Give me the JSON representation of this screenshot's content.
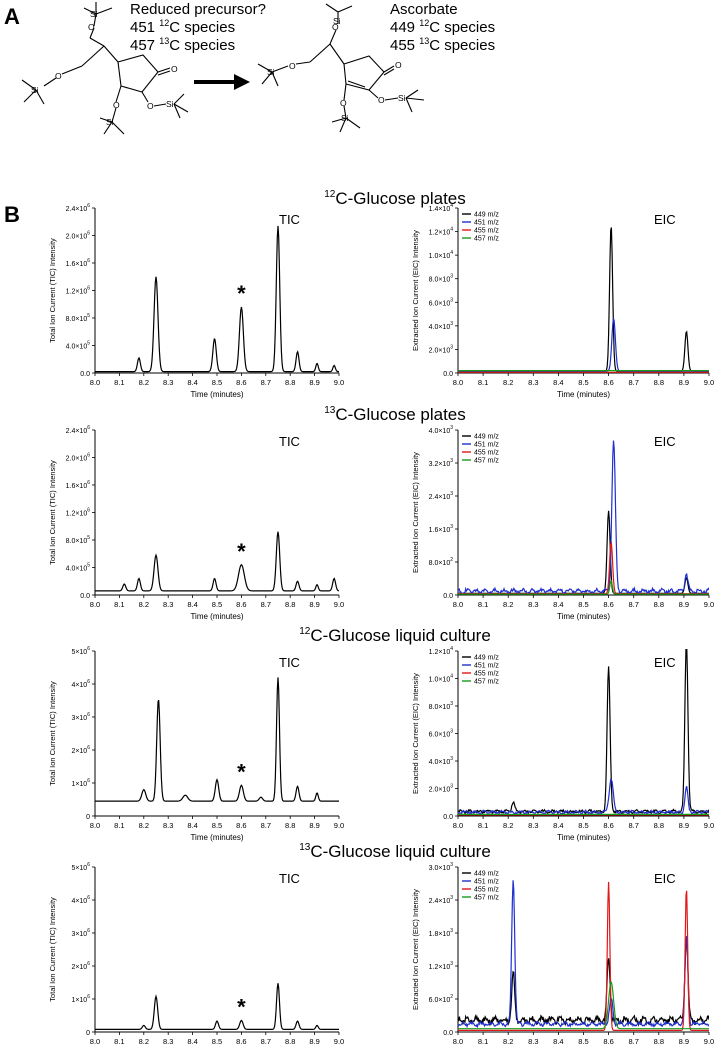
{
  "panel_labels": {
    "a": "A",
    "b": "B"
  },
  "scheme": {
    "left": {
      "line1": "Reduced precursor?",
      "line2_num": "451",
      "line2_iso": "12",
      "line2_tail": "C species",
      "line3_num": "457",
      "line3_iso": "13",
      "line3_tail": "C species"
    },
    "right": {
      "line1": "Ascorbate",
      "line2_num": "449",
      "line2_iso": "12",
      "line2_tail": "C species",
      "line3_num": "455",
      "line3_iso": "13",
      "line3_tail": "C species"
    },
    "atoms": {
      "si": "Si",
      "o": "O"
    }
  },
  "rows": [
    {
      "iso": "12",
      "title": "C-Glucose plates"
    },
    {
      "iso": "13",
      "title": "C-Glucose plates"
    },
    {
      "iso": "12",
      "title": "C-Glucose liquid culture"
    },
    {
      "iso": "13",
      "title": "C-Glucose liquid culture"
    }
  ],
  "axis_text": {
    "xlabel": "Time (minutes)",
    "tic_ylabel": "Total Ion Current (TIC) Intensity",
    "eic_ylabel": "Extracted Ion Current  (EIC) Intensity",
    "tic_tag": "TIC",
    "eic_tag": "EIC",
    "star": "*"
  },
  "colors": {
    "449 m/z": "#000000",
    "451 m/z": "#1f2fd0",
    "455 m/z": "#e01818",
    "457 m/z": "#1a9a1a"
  },
  "chart_data": [
    {
      "type": "line",
      "kind": "TIC",
      "row": 0,
      "xlim": [
        8.0,
        9.0
      ],
      "ylim": [
        0,
        2400000
      ],
      "xticks": [
        "8.0",
        "8.1",
        "8.2",
        "8.3",
        "8.4",
        "8.5",
        "8.6",
        "8.7",
        "8.8",
        "8.9",
        "9.0"
      ],
      "yticks": [
        {
          "v": 0,
          "base": "0.0"
        },
        {
          "v": 400000,
          "base": "4.0×10",
          "exp": "5"
        },
        {
          "v": 800000,
          "base": "8.0×10",
          "exp": "5"
        },
        {
          "v": 1200000,
          "base": "1.2×10",
          "exp": "6"
        },
        {
          "v": 1600000,
          "base": "1.6×10",
          "exp": "6"
        },
        {
          "v": 2000000,
          "base": "2.0×10",
          "exp": "6"
        },
        {
          "v": 2400000,
          "base": "2.4×10",
          "exp": "6"
        }
      ],
      "star_x": 8.6,
      "series": [
        {
          "baseline": 20000,
          "peaks": [
            [
              8.18,
              200000,
              0.006
            ],
            [
              8.25,
              1380000,
              0.008
            ],
            [
              8.49,
              480000,
              0.007
            ],
            [
              8.6,
              940000,
              0.008
            ],
            [
              8.75,
              2120000,
              0.007
            ],
            [
              8.83,
              290000,
              0.006
            ],
            [
              8.91,
              120000,
              0.005
            ],
            [
              8.98,
              90000,
              0.005
            ]
          ]
        }
      ]
    },
    {
      "type": "line",
      "kind": "EIC",
      "row": 0,
      "xlim": [
        8.0,
        9.0
      ],
      "ylim": [
        0,
        14000
      ],
      "xticks": [
        "8.0",
        "8.1",
        "8.2",
        "8.3",
        "8.4",
        "8.5",
        "8.6",
        "8.7",
        "8.8",
        "8.9",
        "9.0"
      ],
      "yticks": [
        {
          "v": 0,
          "base": "0.0"
        },
        {
          "v": 2000,
          "base": "2.0×10",
          "exp": "3"
        },
        {
          "v": 4000,
          "base": "4.0×10",
          "exp": "3"
        },
        {
          "v": 6000,
          "base": "6.0×10",
          "exp": "3"
        },
        {
          "v": 8000,
          "base": "8.0×10",
          "exp": "3"
        },
        {
          "v": 10000,
          "base": "1.0×10",
          "exp": "4"
        },
        {
          "v": 12000,
          "base": "1.2×10",
          "exp": "4"
        },
        {
          "v": 14000,
          "base": "1.4×10",
          "exp": "4"
        }
      ],
      "legend": "top-left",
      "series": [
        {
          "name": "449 m/z",
          "baseline": 150,
          "peaks": [
            [
              8.61,
              12400,
              0.006
            ],
            [
              8.91,
              3400,
              0.006
            ]
          ]
        },
        {
          "name": "451 m/z",
          "baseline": 150,
          "peaks": [
            [
              8.62,
              4500,
              0.007
            ]
          ]
        },
        {
          "name": "455 m/z",
          "baseline": 60,
          "peaks": []
        },
        {
          "name": "457 m/z",
          "baseline": 200,
          "peaks": []
        }
      ]
    },
    {
      "type": "line",
      "kind": "TIC",
      "row": 1,
      "xlim": [
        8.0,
        9.0
      ],
      "ylim": [
        0,
        2400000
      ],
      "xticks": [
        "8.0",
        "8.1",
        "8.2",
        "8.3",
        "8.4",
        "8.5",
        "8.6",
        "8.7",
        "8.8",
        "8.9",
        "9.0"
      ],
      "yticks": [
        {
          "v": 0,
          "base": "0.0"
        },
        {
          "v": 400000,
          "base": "4.0×10",
          "exp": "5"
        },
        {
          "v": 800000,
          "base": "8.0×10",
          "exp": "5"
        },
        {
          "v": 1200000,
          "base": "1.2×10",
          "exp": "6"
        },
        {
          "v": 1600000,
          "base": "1.6×10",
          "exp": "6"
        },
        {
          "v": 2000000,
          "base": "2.0×10",
          "exp": "6"
        },
        {
          "v": 2400000,
          "base": "2.4×10",
          "exp": "6"
        }
      ],
      "star_x": 8.6,
      "series": [
        {
          "baseline": 60000,
          "peaks": [
            [
              8.12,
              100000,
              0.006
            ],
            [
              8.18,
              180000,
              0.006
            ],
            [
              8.25,
              520000,
              0.008
            ],
            [
              8.49,
              180000,
              0.006
            ],
            [
              8.6,
              380000,
              0.012
            ],
            [
              8.75,
              860000,
              0.007
            ],
            [
              8.83,
              140000,
              0.006
            ],
            [
              8.91,
              90000,
              0.005
            ],
            [
              8.98,
              180000,
              0.006
            ]
          ]
        }
      ]
    },
    {
      "type": "line",
      "kind": "EIC",
      "row": 1,
      "xlim": [
        8.0,
        9.0
      ],
      "ylim": [
        0,
        4000
      ],
      "xticks": [
        "8.0",
        "8.1",
        "8.2",
        "8.3",
        "8.4",
        "8.5",
        "8.6",
        "8.7",
        "8.8",
        "8.9",
        "9.0"
      ],
      "yticks": [
        {
          "v": 0,
          "base": "0.0"
        },
        {
          "v": 800,
          "base": "8.0×10",
          "exp": "2"
        },
        {
          "v": 1600,
          "base": "1.6×10",
          "exp": "3"
        },
        {
          "v": 2400,
          "base": "2.4×10",
          "exp": "3"
        },
        {
          "v": 3200,
          "base": "3.2×10",
          "exp": "3"
        },
        {
          "v": 4000,
          "base": "4.0×10",
          "exp": "3"
        }
      ],
      "legend": "top-left",
      "series": [
        {
          "name": "449 m/z",
          "baseline": 40,
          "peaks": [
            [
              8.6,
              2000,
              0.006
            ],
            [
              8.91,
              380,
              0.006
            ]
          ]
        },
        {
          "name": "451 m/z",
          "baseline": 60,
          "noise": 70,
          "peaks": [
            [
              8.62,
              3650,
              0.007
            ],
            [
              8.91,
              420,
              0.006
            ]
          ]
        },
        {
          "name": "455 m/z",
          "baseline": 30,
          "peaks": [
            [
              8.61,
              1250,
              0.006
            ]
          ]
        },
        {
          "name": "457 m/z",
          "baseline": 20,
          "peaks": [
            [
              8.61,
              330,
              0.005
            ]
          ]
        }
      ]
    },
    {
      "type": "line",
      "kind": "TIC",
      "row": 2,
      "xlim": [
        8.0,
        9.0
      ],
      "ylim": [
        0,
        5000000
      ],
      "xticks": [
        "8.0",
        "8.1",
        "8.2",
        "8.3",
        "8.4",
        "8.5",
        "8.6",
        "8.7",
        "8.8",
        "8.9",
        "9.0"
      ],
      "yticks": [
        {
          "v": 0,
          "base": "0"
        },
        {
          "v": 1000000,
          "base": "1×10",
          "exp": "6"
        },
        {
          "v": 2000000,
          "base": "2×10",
          "exp": "6"
        },
        {
          "v": 3000000,
          "base": "3×10",
          "exp": "6"
        },
        {
          "v": 4000000,
          "base": "4×10",
          "exp": "6"
        },
        {
          "v": 5000000,
          "base": "5×10",
          "exp": "6"
        }
      ],
      "star_x": 8.6,
      "series": [
        {
          "baseline": 450000,
          "peaks": [
            [
              8.2,
              350000,
              0.008
            ],
            [
              8.26,
              3100000,
              0.007
            ],
            [
              8.37,
              180000,
              0.01
            ],
            [
              8.5,
              650000,
              0.007
            ],
            [
              8.6,
              480000,
              0.008
            ],
            [
              8.68,
              120000,
              0.007
            ],
            [
              8.75,
              3750000,
              0.006
            ],
            [
              8.83,
              450000,
              0.006
            ],
            [
              8.91,
              250000,
              0.005
            ]
          ]
        }
      ]
    },
    {
      "type": "line",
      "kind": "EIC",
      "row": 2,
      "xlim": [
        8.0,
        9.0
      ],
      "ylim": [
        0,
        12000
      ],
      "xticks": [
        "8.0",
        "8.1",
        "8.2",
        "8.3",
        "8.4",
        "8.5",
        "8.6",
        "8.7",
        "8.8",
        "8.9",
        "9.0"
      ],
      "yticks": [
        {
          "v": 0,
          "base": "0.0"
        },
        {
          "v": 2000,
          "base": "2.0×10",
          "exp": "3"
        },
        {
          "v": 4000,
          "base": "4.0×10",
          "exp": "3"
        },
        {
          "v": 6000,
          "base": "6.0×10",
          "exp": "3"
        },
        {
          "v": 8000,
          "base": "8.0×10",
          "exp": "3"
        },
        {
          "v": 10000,
          "base": "1.0×10",
          "exp": "4"
        },
        {
          "v": 12000,
          "base": "1.2×10",
          "exp": "4"
        }
      ],
      "legend": "top-left",
      "series": [
        {
          "name": "449 m/z",
          "baseline": 250,
          "noise": 150,
          "peaks": [
            [
              8.22,
              700,
              0.006
            ],
            [
              8.6,
              10500,
              0.006
            ],
            [
              8.91,
              12500,
              0.006
            ]
          ]
        },
        {
          "name": "451 m/z",
          "baseline": 200,
          "noise": 150,
          "peaks": [
            [
              8.61,
              2400,
              0.008
            ],
            [
              8.91,
              1800,
              0.006
            ]
          ]
        },
        {
          "name": "455 m/z",
          "baseline": 80,
          "peaks": []
        },
        {
          "name": "457 m/z",
          "baseline": 120,
          "peaks": []
        }
      ]
    },
    {
      "type": "line",
      "kind": "TIC",
      "row": 3,
      "xlim": [
        8.0,
        9.0
      ],
      "ylim": [
        0,
        5000000
      ],
      "xticks": [
        "8.0",
        "8.1",
        "8.2",
        "8.3",
        "8.4",
        "8.5",
        "8.6",
        "8.7",
        "8.8",
        "8.9",
        "9.0"
      ],
      "yticks": [
        {
          "v": 0,
          "base": "0"
        },
        {
          "v": 1000000,
          "base": "1×10",
          "exp": "6"
        },
        {
          "v": 2000000,
          "base": "2×10",
          "exp": "6"
        },
        {
          "v": 3000000,
          "base": "3×10",
          "exp": "6"
        },
        {
          "v": 4000000,
          "base": "4×10",
          "exp": "6"
        },
        {
          "v": 5000000,
          "base": "5×10",
          "exp": "6"
        }
      ],
      "star_x": 8.6,
      "series": [
        {
          "baseline": 80000,
          "peaks": [
            [
              8.2,
              120000,
              0.006
            ],
            [
              8.25,
              1000000,
              0.007
            ],
            [
              8.5,
              250000,
              0.006
            ],
            [
              8.6,
              270000,
              0.007
            ],
            [
              8.75,
              1400000,
              0.006
            ],
            [
              8.83,
              250000,
              0.006
            ],
            [
              8.91,
              120000,
              0.005
            ]
          ]
        }
      ]
    },
    {
      "type": "line",
      "kind": "EIC",
      "row": 3,
      "xlim": [
        8.0,
        9.0
      ],
      "ylim": [
        0,
        3000
      ],
      "xticks": [
        "8.0",
        "8.1",
        "8.2",
        "8.3",
        "8.4",
        "8.5",
        "8.6",
        "8.7",
        "8.8",
        "8.9",
        "9.0"
      ],
      "yticks": [
        {
          "v": 0,
          "base": "0.0"
        },
        {
          "v": 600,
          "base": "6.0×10",
          "exp": "2"
        },
        {
          "v": 1200,
          "base": "1.2×10",
          "exp": "3"
        },
        {
          "v": 1800,
          "base": "1.8×10",
          "exp": "3"
        },
        {
          "v": 2400,
          "base": "2.4×10",
          "exp": "3"
        },
        {
          "v": 3000,
          "base": "3.0×10",
          "exp": "3"
        }
      ],
      "legend": "top-left",
      "series": [
        {
          "name": "449 m/z",
          "baseline": 170,
          "noise": 90,
          "peaks": [
            [
              8.22,
              850,
              0.006
            ],
            [
              8.6,
              1150,
              0.006
            ],
            [
              8.91,
              1500,
              0.006
            ]
          ]
        },
        {
          "name": "451 m/z",
          "baseline": 120,
          "noise": 50,
          "peaks": [
            [
              8.22,
              2650,
              0.006
            ],
            [
              8.61,
              450,
              0.007
            ],
            [
              8.91,
              1600,
              0.006
            ]
          ]
        },
        {
          "name": "455 m/z",
          "baseline": 30,
          "peaks": [
            [
              8.6,
              2700,
              0.005
            ],
            [
              8.91,
              2600,
              0.005
            ]
          ]
        },
        {
          "name": "457 m/z",
          "baseline": 60,
          "peaks": [
            [
              8.61,
              850,
              0.01
            ]
          ]
        }
      ]
    }
  ]
}
